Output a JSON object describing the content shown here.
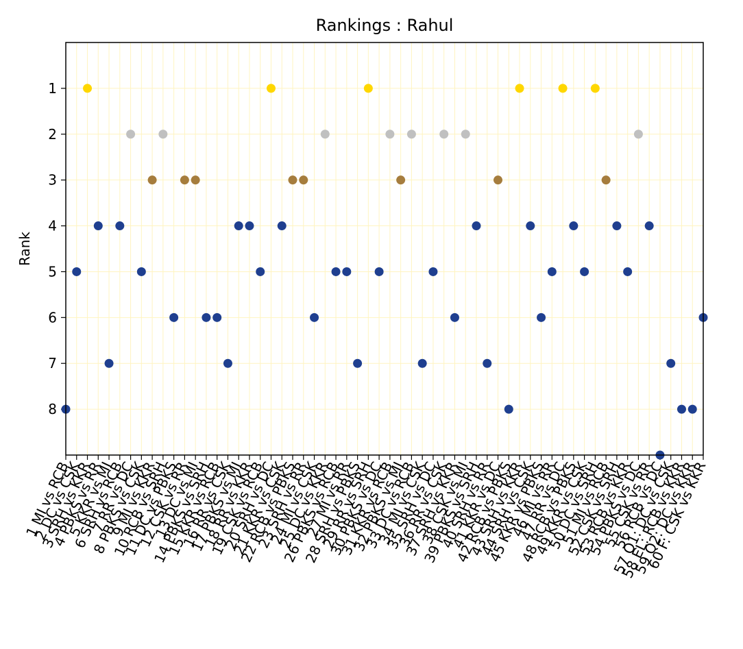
{
  "chart_data": {
    "type": "scatter",
    "title": "Rankings : Rahul",
    "xlabel": "",
    "ylabel": "Rank",
    "y_inverted": true,
    "ylim": [
      9,
      0
    ],
    "yticks": [
      1,
      2,
      3,
      4,
      5,
      6,
      7,
      8
    ],
    "grid": true,
    "colors": {
      "gold": "#FFD700",
      "silver": "#C0C0C0",
      "bronze": "#A67D3D",
      "other": "#1F3F8F",
      "grid": "#FFF4C0"
    },
    "categories": [
      "1 MI vs RCB",
      "2 DC vs CSK",
      "3 SRH vs KKR",
      "4 PBKS vs RR",
      "5 KKR vs MI",
      "6 SRH vs RCB",
      "7 RR vs DC",
      "8 PBKS vs CSK",
      "9 MI vs KKR",
      "10 RCB vs SRH",
      "11 DC vs PBKS",
      "12 CSK vs RR",
      "13 DC vs MI",
      "14 PBKS vs SRH",
      "15 KKR vs RCB",
      "16 RR vs CSK",
      "17 PBKS vs MI",
      "18 RR vs KKR",
      "19 CSK vs RCB",
      "20 SRH vs DC",
      "21 KKR vs CSK",
      "22 RCB vs PBKS",
      "23 SRH vs RR",
      "24 MI vs CSK",
      "25 DC vs KKR",
      "26 PBKS vs RCB",
      "27 MI vs RR",
      "28 SRH vs PBKS",
      "29 RR vs SRH",
      "30 PBKS vs DC",
      "31 KKR vs RCB",
      "32 PBKS vs MI",
      "33 DC vs RCB",
      "34 MI vs CSK",
      "35 SRH vs DC",
      "36 RR vs CSK",
      "37 SRH vs KKR",
      "38 CSK vs MI",
      "39 PBKS vs SRH",
      "40 SRH vs RR",
      "41 KKR vs DC",
      "42 RCB vs PBKS",
      "43 SRH vs KKR",
      "44 SRH vs CSK",
      "45 KKR vs PBKS",
      "46 MI vs RR",
      "47 RR vs DC",
      "48 RCB vs PBKS",
      "49 KKR vs CSK",
      "50 DC vs SRH",
      "51 MI vs RCB",
      "52 CSK vs SRH",
      "53 RCB vs KKR",
      "54 PBKS vs DC",
      "55 CSK vs RR",
      "56 RCB vs DC",
      "57 Q1: DC vs CSK",
      "58 EL: RCB vs KKR",
      "59 Q2: DC vs KKR",
      "60 F: CSK vs KKR"
    ],
    "values": [
      8,
      5,
      1,
      4,
      7,
      4,
      2,
      5,
      3,
      2,
      6,
      3,
      3,
      6,
      6,
      7,
      4,
      4,
      5,
      1,
      4,
      3,
      3,
      6,
      2,
      5,
      5,
      7,
      1,
      5,
      2,
      3,
      2,
      7,
      5,
      2,
      6,
      2,
      4,
      7,
      3,
      8,
      1,
      4,
      6,
      5,
      1,
      4,
      5,
      1,
      3,
      4,
      5,
      2,
      4,
      9,
      7,
      8,
      8,
      6
    ]
  }
}
